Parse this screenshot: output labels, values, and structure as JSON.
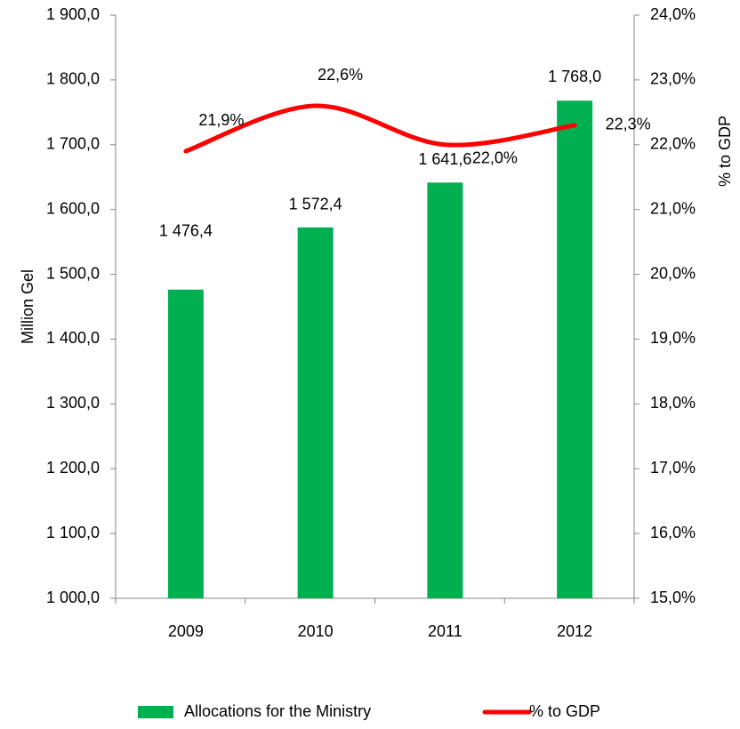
{
  "chart_data": {
    "type": "bar-line",
    "categories": [
      "2009",
      "2010",
      "2011",
      "2012"
    ],
    "y_label": "Million Gel",
    "y2_label": "% to GDP",
    "ylim": [
      1000,
      1900
    ],
    "yticks": [
      {
        "value": 1000,
        "label": "1 000,0"
      },
      {
        "value": 1100,
        "label": "1 100,0"
      },
      {
        "value": 1200,
        "label": "1 200,0"
      },
      {
        "value": 1300,
        "label": "1 300,0"
      },
      {
        "value": 1400,
        "label": "1 400,0"
      },
      {
        "value": 1500,
        "label": "1 500,0"
      },
      {
        "value": 1600,
        "label": "1 600,0"
      },
      {
        "value": 1700,
        "label": "1 700,0"
      },
      {
        "value": 1800,
        "label": "1 800,0"
      },
      {
        "value": 1900,
        "label": "1 900,0"
      }
    ],
    "y2lim": [
      15,
      24
    ],
    "y2ticks": [
      {
        "value": 15,
        "label": "15,0%"
      },
      {
        "value": 16,
        "label": "16,0%"
      },
      {
        "value": 17,
        "label": "17,0%"
      },
      {
        "value": 18,
        "label": "18,0%"
      },
      {
        "value": 19,
        "label": "19,0%"
      },
      {
        "value": 20,
        "label": "20,0%"
      },
      {
        "value": 21,
        "label": "21,0%"
      },
      {
        "value": 22,
        "label": "22,0%"
      },
      {
        "value": 23,
        "label": "23,0%"
      },
      {
        "value": 24,
        "label": "24,0%"
      }
    ],
    "legend": "bottom",
    "series": [
      {
        "name": "Allocations for the Ministry",
        "type": "bar",
        "color": "#00b050",
        "values": [
          1476.4,
          1572.4,
          1641.6,
          1768.0
        ],
        "value_labels": [
          "1 476,4",
          "1 572,4",
          "1 641,6",
          "1 768,0"
        ]
      },
      {
        "name": "% to GDP",
        "type": "line",
        "axis": "y2",
        "color": "#ff0000",
        "smooth": true,
        "values": [
          21.9,
          22.6,
          22.0,
          22.3
        ],
        "value_labels": [
          "21,9%",
          "22,6%",
          "22,0%",
          "22,3%"
        ]
      }
    ]
  }
}
